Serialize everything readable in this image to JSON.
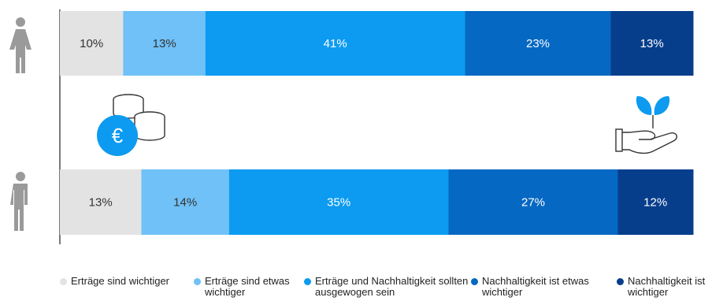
{
  "colors": {
    "axis": "#222222",
    "icon_grey": "#9a9a9a",
    "icon_blue": "#0c9bf0",
    "icon_dark": "#333333"
  },
  "icons": {
    "female": "female-person-icon",
    "male": "male-person-icon",
    "coins": "euro-coins-icon",
    "plant": "plant-hand-icon",
    "coin_symbol": "€"
  },
  "chart_data": {
    "type": "bar",
    "orientation": "horizontal",
    "stacked": true,
    "normalized": true,
    "categories": [
      "Frauen",
      "Männer"
    ],
    "title": "",
    "xlabel": "",
    "ylabel": "",
    "xlim": [
      0,
      100
    ],
    "grid": false,
    "legend_position": "bottom",
    "series": [
      {
        "name": "Erträge sind wichtiger",
        "values": [
          10,
          13
        ],
        "labels": [
          "10%",
          "13%"
        ],
        "color": "#e3e3e3",
        "label_color": "#333333"
      },
      {
        "name": "Erträge sind etwas wichtiger",
        "values": [
          13,
          14
        ],
        "labels": [
          "13%",
          "14%"
        ],
        "color": "#6fc1f7",
        "label_color": "#333333"
      },
      {
        "name": "Erträge und Nachhaltigkeit sollten ausgewogen sein",
        "values": [
          41,
          35
        ],
        "labels": [
          "41%",
          "35%"
        ],
        "color": "#0c9bf0",
        "label_color": "#ffffff"
      },
      {
        "name": "Nachhaltigkeit ist etwas wichtiger",
        "values": [
          23,
          27
        ],
        "labels": [
          "23%",
          "27%"
        ],
        "color": "#0568c2",
        "label_color": "#ffffff"
      },
      {
        "name": "Nachhaltigkeit ist wichtiger",
        "values": [
          13,
          12
        ],
        "labels": [
          "13%",
          "12%"
        ],
        "color": "#073e8c",
        "label_color": "#ffffff"
      }
    ]
  }
}
